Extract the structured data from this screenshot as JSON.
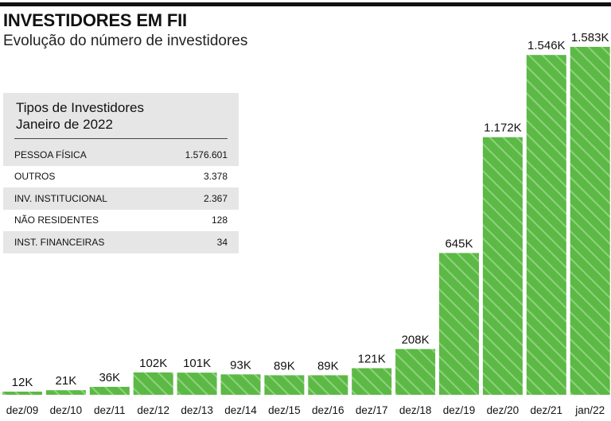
{
  "header": {
    "title": "INVESTIDORES EM FII",
    "subtitle": "Evolução do número de investidores"
  },
  "inset": {
    "title": "Tipos de Investidores",
    "subtitle": "Janeiro de 2022",
    "rows": [
      {
        "label": "PESSOA FÍSICA",
        "value": "1.576.601"
      },
      {
        "label": "OUTROS",
        "value": "3.378"
      },
      {
        "label": "INV. INSTITUCIONAL",
        "value": "2.367"
      },
      {
        "label": "NÃO RESIDENTES",
        "value": "128"
      },
      {
        "label": "INST. FINANCEIRAS",
        "value": "34"
      }
    ]
  },
  "colors": {
    "bar_fill": "#5cb946",
    "bar_hatch": "#8fd37d",
    "inset_shade": "#e6e6e7",
    "text": "#111111"
  },
  "chart_data": {
    "type": "bar",
    "title": "INVESTIDORES EM FII",
    "subtitle": "Evolução do número de investidores",
    "xlabel": "",
    "ylabel": "",
    "categories": [
      "dez/09",
      "dez/10",
      "dez/11",
      "dez/12",
      "dez/13",
      "dez/14",
      "dez/15",
      "dez/16",
      "dez/17",
      "dez/18",
      "dez/19",
      "dez/20",
      "dez/21",
      "jan/22"
    ],
    "values": [
      12,
      21,
      36,
      102,
      101,
      93,
      89,
      89,
      121,
      208,
      645,
      1172,
      1546,
      1583
    ],
    "value_unit": "K",
    "data_labels": [
      "12K",
      "21K",
      "36K",
      "102K",
      "101K",
      "93K",
      "89K",
      "89K",
      "121K",
      "208K",
      "645K",
      "1.172K",
      "1.546K",
      "1.583K"
    ],
    "ylim": [
      0,
      1583
    ],
    "grid": false,
    "legend": "none"
  }
}
